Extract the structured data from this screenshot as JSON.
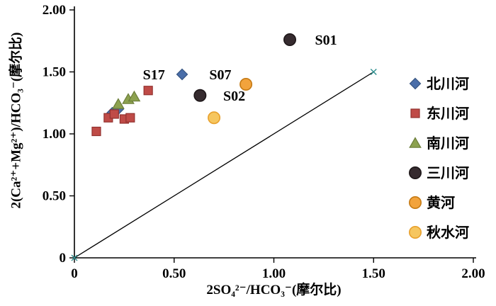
{
  "chart_data": {
    "type": "scatter",
    "title": "",
    "xlabel": "2SO₄²⁻/HCO₃⁻(摩尔比)",
    "ylabel": "2(Ca²⁺+Mg²⁺)/HCO₃⁻(摩尔比)",
    "xlim": [
      0,
      2.0
    ],
    "ylim": [
      0,
      2.0
    ],
    "grid": false,
    "legend_position": "right-inside",
    "xticks": [
      {
        "v": 0,
        "label": "0"
      },
      {
        "v": 0.5,
        "label": "0.50"
      },
      {
        "v": 1.0,
        "label": "1.00"
      },
      {
        "v": 1.5,
        "label": "1.50"
      },
      {
        "v": 2.0,
        "label": "2.00"
      }
    ],
    "yticks": [
      {
        "v": 0,
        "label": "0"
      },
      {
        "v": 0.5,
        "label": "0.50"
      },
      {
        "v": 1.0,
        "label": "1.00"
      },
      {
        "v": 1.5,
        "label": "1.50"
      },
      {
        "v": 2.0,
        "label": "2.00"
      }
    ],
    "series": [
      {
        "name": "北川河",
        "marker": "diamond",
        "color": "#4a6ea9",
        "stroke": "#365481",
        "points": [
          [
            0.19,
            1.17
          ],
          [
            0.22,
            1.2
          ],
          [
            0.54,
            1.48
          ]
        ]
      },
      {
        "name": "东川河",
        "marker": "square",
        "color": "#bf4b47",
        "stroke": "#93322f",
        "points": [
          [
            0.11,
            1.02
          ],
          [
            0.17,
            1.13
          ],
          [
            0.2,
            1.16
          ],
          [
            0.25,
            1.12
          ],
          [
            0.28,
            1.13
          ],
          [
            0.37,
            1.35
          ]
        ]
      },
      {
        "name": "南川河",
        "marker": "triangle",
        "color": "#8ca14f",
        "stroke": "#6b7d39",
        "points": [
          [
            0.22,
            1.24
          ],
          [
            0.27,
            1.28
          ],
          [
            0.3,
            1.3
          ]
        ]
      },
      {
        "name": "三川河",
        "marker": "circle",
        "color": "#362b2f",
        "stroke": "#1e1719",
        "points": [
          [
            0.63,
            1.31
          ],
          [
            1.08,
            1.76
          ]
        ]
      },
      {
        "name": "黄河",
        "marker": "circle",
        "color": "#f2a33c",
        "stroke": "#c57a14",
        "points": [
          [
            0.86,
            1.4
          ]
        ]
      },
      {
        "name": "秋水河",
        "marker": "circle",
        "color": "#f6c65f",
        "stroke": "#e8a02c",
        "points": [
          [
            0.7,
            1.13
          ]
        ]
      }
    ],
    "reference_line": {
      "from": [
        0,
        0
      ],
      "to": [
        1.5,
        1.5
      ],
      "color": "#000000",
      "end_marker": "x",
      "end_marker_color": "#2e8f8f"
    },
    "annotations": [
      {
        "text": "S01",
        "x": 1.16,
        "y": 1.76,
        "anchor": "start"
      },
      {
        "text": "S17",
        "x": 0.5,
        "y": 1.48,
        "anchor": "end"
      },
      {
        "text": "S07",
        "x": 0.63,
        "y": 1.48,
        "anchor": "start"
      },
      {
        "text": "S02",
        "x": 0.7,
        "y": 1.31,
        "anchor": "start"
      }
    ]
  }
}
